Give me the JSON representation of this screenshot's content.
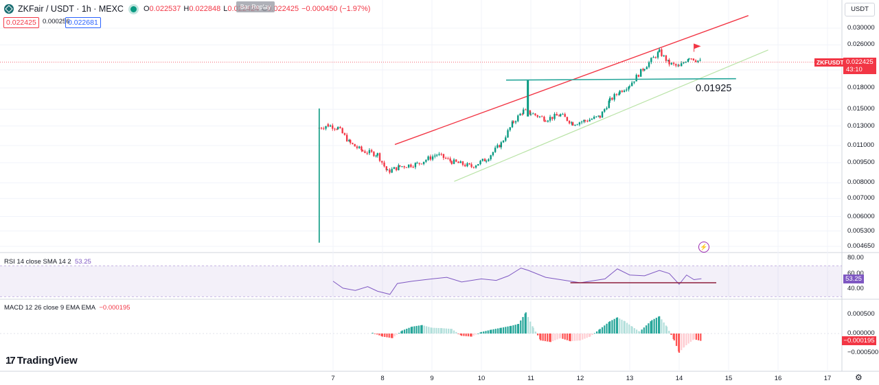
{
  "header": {
    "symbol": "ZKFair / USDT · 1h · MEXC",
    "ohlc": [
      {
        "label": "O",
        "value": "0.022537"
      },
      {
        "label": "H",
        "value": "0.022848"
      },
      {
        "label": "L",
        "value": "0.022424"
      },
      {
        "label": "C",
        "value": "0.022425"
      }
    ],
    "change": "−0.000450 (−1.97%)",
    "replay_label": "Bar Replay"
  },
  "quote": {
    "bid": "0.022425",
    "spread": "0.000256",
    "ask": "0.022681"
  },
  "currency_button": "USDT",
  "colors": {
    "up": "#089981",
    "down": "#f23645",
    "rsi": "#7e57c2",
    "channel_upper": "#f23645",
    "channel_lower": "#b9e3a6",
    "level_line": "#26a69a"
  },
  "chart_data": [
    {
      "type": "candlestick",
      "title": "ZKFair / USDT · 1h · MEXC",
      "scale": "log",
      "x_ticks": [
        "7",
        "8",
        "9",
        "10",
        "11",
        "12",
        "13",
        "14",
        "15",
        "16",
        "17"
      ],
      "y_ticks": [
        "0.030000",
        "0.026000",
        "0.021000",
        "0.018000",
        "0.015000",
        "0.013000",
        "0.011000",
        "0.009500",
        "0.008000",
        "0.007000",
        "0.006000",
        "0.005300",
        "0.004650"
      ],
      "last_price": "0.022425",
      "countdown": "43:10",
      "symbol_tag": "ZKFUSDT",
      "annotations": [
        {
          "type": "horizontal-line",
          "value": 0.01925,
          "label": "0.01925"
        }
      ],
      "price_path": [
        [
          6.72,
          0.0048
        ],
        [
          6.72,
          0.0128
        ],
        [
          6.9,
          0.0131
        ],
        [
          7.1,
          0.0128
        ],
        [
          7.35,
          0.0112
        ],
        [
          7.6,
          0.0105
        ],
        [
          7.9,
          0.0102
        ],
        [
          8.1,
          0.0088
        ],
        [
          8.35,
          0.0092
        ],
        [
          8.7,
          0.0094
        ],
        [
          9.1,
          0.0102
        ],
        [
          9.4,
          0.0096
        ],
        [
          9.8,
          0.0092
        ],
        [
          10.1,
          0.0098
        ],
        [
          10.4,
          0.0112
        ],
        [
          10.65,
          0.0135
        ],
        [
          10.85,
          0.0148
        ],
        [
          11.0,
          0.0145
        ],
        [
          11.3,
          0.0138
        ],
        [
          11.6,
          0.0143
        ],
        [
          11.85,
          0.0133
        ],
        [
          12.1,
          0.0136
        ],
        [
          12.4,
          0.0141
        ],
        [
          12.6,
          0.0162
        ],
        [
          12.8,
          0.0175
        ],
        [
          13.0,
          0.0185
        ],
        [
          13.3,
          0.0215
        ],
        [
          13.6,
          0.0245
        ],
        [
          13.8,
          0.0222
        ],
        [
          14.0,
          0.0215
        ],
        [
          14.2,
          0.0235
        ],
        [
          14.45,
          0.022425
        ]
      ]
    },
    {
      "type": "line",
      "title": "RSI 14 close SMA 14 2",
      "current": "53.25",
      "y_ticks": [
        "80.00",
        "60.00",
        "40.00"
      ],
      "band": [
        30,
        70
      ],
      "series": [
        {
          "x": [
            7.0,
            7.2,
            7.45,
            7.7,
            7.9,
            8.15,
            8.3,
            8.6,
            9.0,
            9.3,
            9.6,
            10.0,
            10.3,
            10.55,
            10.8,
            10.95,
            11.3,
            11.7,
            12.0,
            12.3,
            12.5,
            12.75,
            13.0,
            13.3,
            13.6,
            13.8,
            14.0,
            14.15,
            14.3,
            14.45
          ],
          "values": [
            50,
            41,
            38,
            43,
            37,
            33,
            47,
            50,
            53,
            55,
            49,
            53,
            51,
            57,
            67,
            64,
            55,
            51,
            48,
            51,
            53,
            66,
            58,
            57,
            64,
            60,
            46,
            58,
            52,
            53.25
          ]
        }
      ],
      "annotations": [
        {
          "type": "horizontal-line",
          "value": 48
        }
      ]
    },
    {
      "type": "bar",
      "title": "MACD 12 26 close 9 EMA EMA",
      "current": "−0.000195",
      "y_ticks": [
        "0.000500",
        "0.000000",
        "−0.000500"
      ],
      "series": [
        {
          "x": [
            7.8,
            8.0,
            8.2,
            8.4,
            8.6,
            8.8,
            9.0,
            9.2,
            9.4,
            9.6,
            9.8,
            10.0,
            10.2,
            10.4,
            10.6,
            10.75,
            10.9,
            11.05,
            11.2,
            11.4,
            11.6,
            11.8,
            12.0,
            12.2,
            12.4,
            12.6,
            12.75,
            12.9,
            13.05,
            13.2,
            13.45,
            13.6,
            13.75,
            13.9,
            14.0,
            14.1,
            14.3,
            14.45
          ],
          "values": [
            2e-05,
            -8e-05,
            -0.00012,
            8e-05,
            0.00018,
            0.00022,
            0.00015,
            0.00014,
            0.00012,
            -6e-05,
            -8e-05,
            4e-05,
            0.0001,
            0.00015,
            0.0002,
            0.00025,
            0.00055,
            0.00015,
            -0.00018,
            -0.00022,
            -0.00012,
            -0.0002,
            -0.00018,
            -8e-05,
            0.00012,
            0.00032,
            0.00042,
            0.00032,
            0.00018,
            5e-05,
            0.00035,
            0.00045,
            0.00018,
            -0.00018,
            -0.0005,
            -0.00035,
            -0.00015,
            -0.000195
          ]
        }
      ]
    }
  ],
  "rsi_label": {
    "name": "RSI 14 close SMA 14 2",
    "value": "53.25"
  },
  "macd_label": {
    "name": "MACD 12 26 close 9 EMA EMA",
    "value": "−0.000195"
  },
  "branding": {
    "logo_text": "TradingView",
    "logo_mark": "17"
  }
}
